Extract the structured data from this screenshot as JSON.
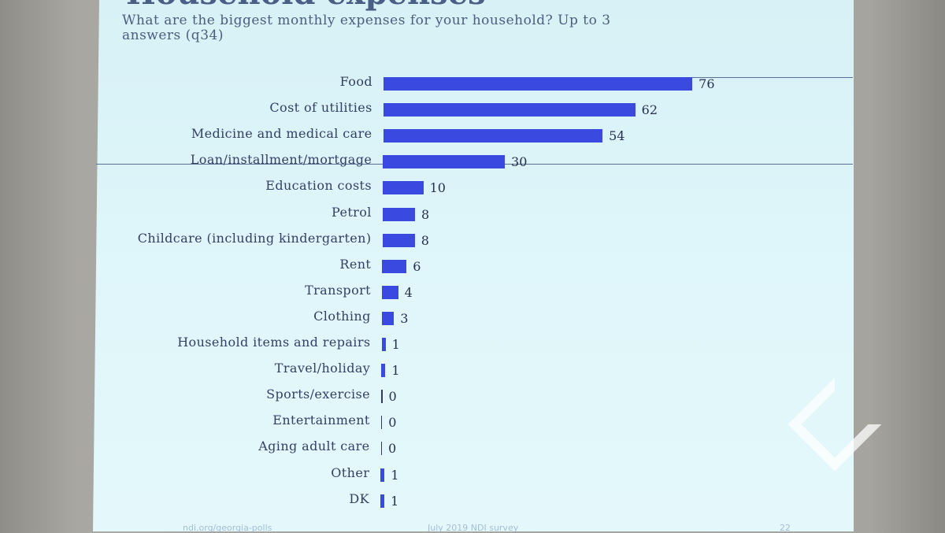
{
  "slide": {
    "title": "Household expenses",
    "subtitle": "What are the biggest monthly expenses for your household? Up to 3 answers (q34)",
    "footer_left": "ndi.org/georgia-polls",
    "footer_center": "July 2019 NDI survey",
    "page_number": "22"
  },
  "chart_data": {
    "type": "bar",
    "orientation": "horizontal",
    "title": "Household expenses",
    "subtitle": "What are the biggest monthly expenses for your household? Up to 3 answers (q34)",
    "unit": "%",
    "categories": [
      "Food",
      "Cost of utilities",
      "Medicine and medical care",
      "Loan/installment/mortgage",
      "Education costs",
      "Petrol",
      "Childcare (including kindergarten)",
      "Rent",
      "Transport",
      "Clothing",
      "Household items and repairs",
      "Travel/holiday",
      "Sports/exercise",
      "Entertainment",
      "Aging adult care",
      "Other",
      "DK"
    ],
    "values": [
      76,
      62,
      54,
      30,
      10,
      8,
      8,
      6,
      4,
      3,
      1,
      1,
      0,
      0,
      0,
      1,
      1
    ],
    "xlim": [
      0,
      100
    ],
    "highlighted_top": 4,
    "bar_color": "#3a49e0"
  }
}
